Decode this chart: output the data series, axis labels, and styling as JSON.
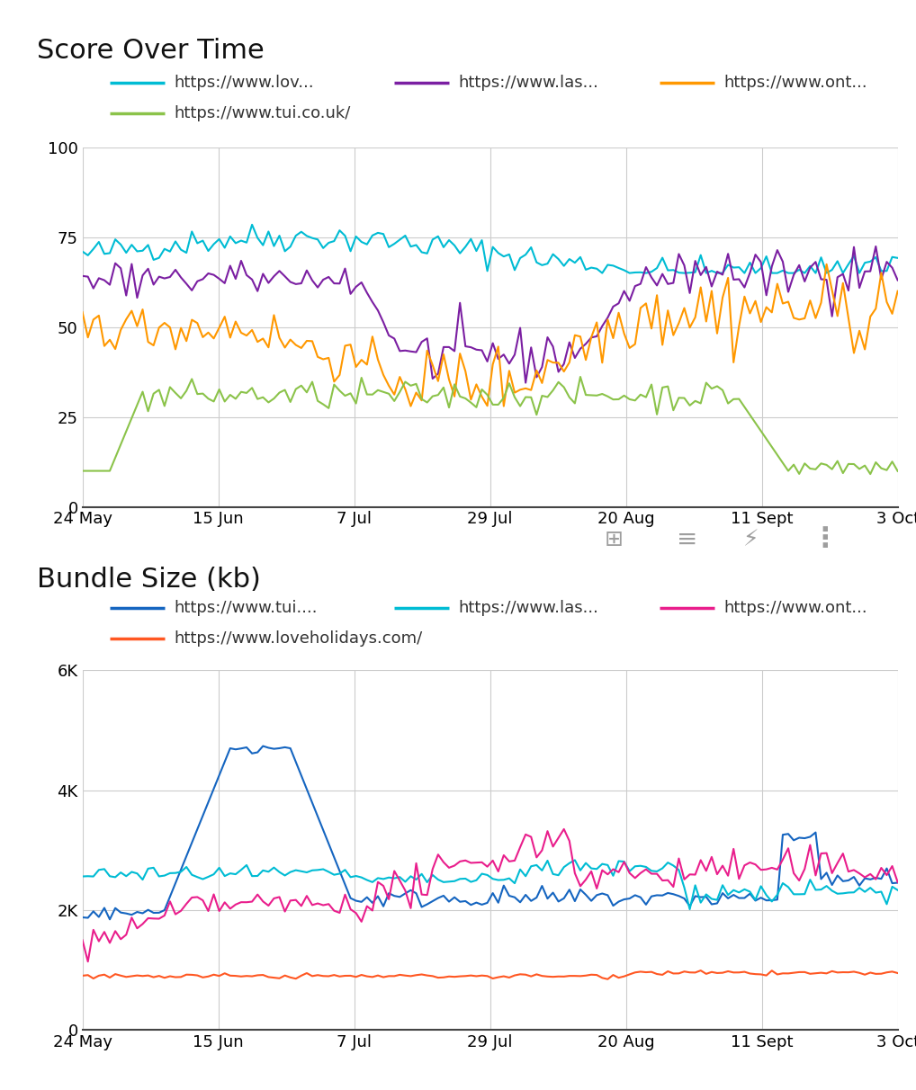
{
  "chart1_title": "Score Over Time",
  "chart2_title": "Bundle Size (kb)",
  "x_labels": [
    "24 May",
    "15 Jun",
    "7 Jul",
    "29 Jul",
    "20 Aug",
    "11 Sept",
    "3 Oct"
  ],
  "chart1_legend": [
    {
      "label": "https://www.lov...",
      "color": "#00BCD4"
    },
    {
      "label": "https://www.las...",
      "color": "#7B1FA2"
    },
    {
      "label": "https://www.ont...",
      "color": "#FF9800"
    },
    {
      "label": "https://www.tui.co.uk/",
      "color": "#8BC34A"
    }
  ],
  "chart2_legend": [
    {
      "label": "https://www.tui....",
      "color": "#1565C0"
    },
    {
      "label": "https://www.las...",
      "color": "#00BCD4"
    },
    {
      "label": "https://www.ont...",
      "color": "#E91E8C"
    },
    {
      "label": "https://www.loveholidays.com/",
      "color": "#FF5722"
    }
  ],
  "chart1_ylim": [
    0,
    100
  ],
  "chart2_ylim": [
    0,
    6000
  ],
  "chart1_yticks": [
    0,
    25,
    50,
    75,
    100
  ],
  "chart2_yticks": [
    0,
    2000,
    4000,
    6000
  ],
  "chart2_ytick_labels": [
    "0",
    "2K",
    "4K",
    "6K"
  ],
  "n_points": 150,
  "background_color": "#ffffff",
  "grid_color": "#cccccc",
  "title_fontsize": 22,
  "legend_fontsize": 13,
  "tick_fontsize": 13,
  "icon_bar_color": "#9E9E9E"
}
